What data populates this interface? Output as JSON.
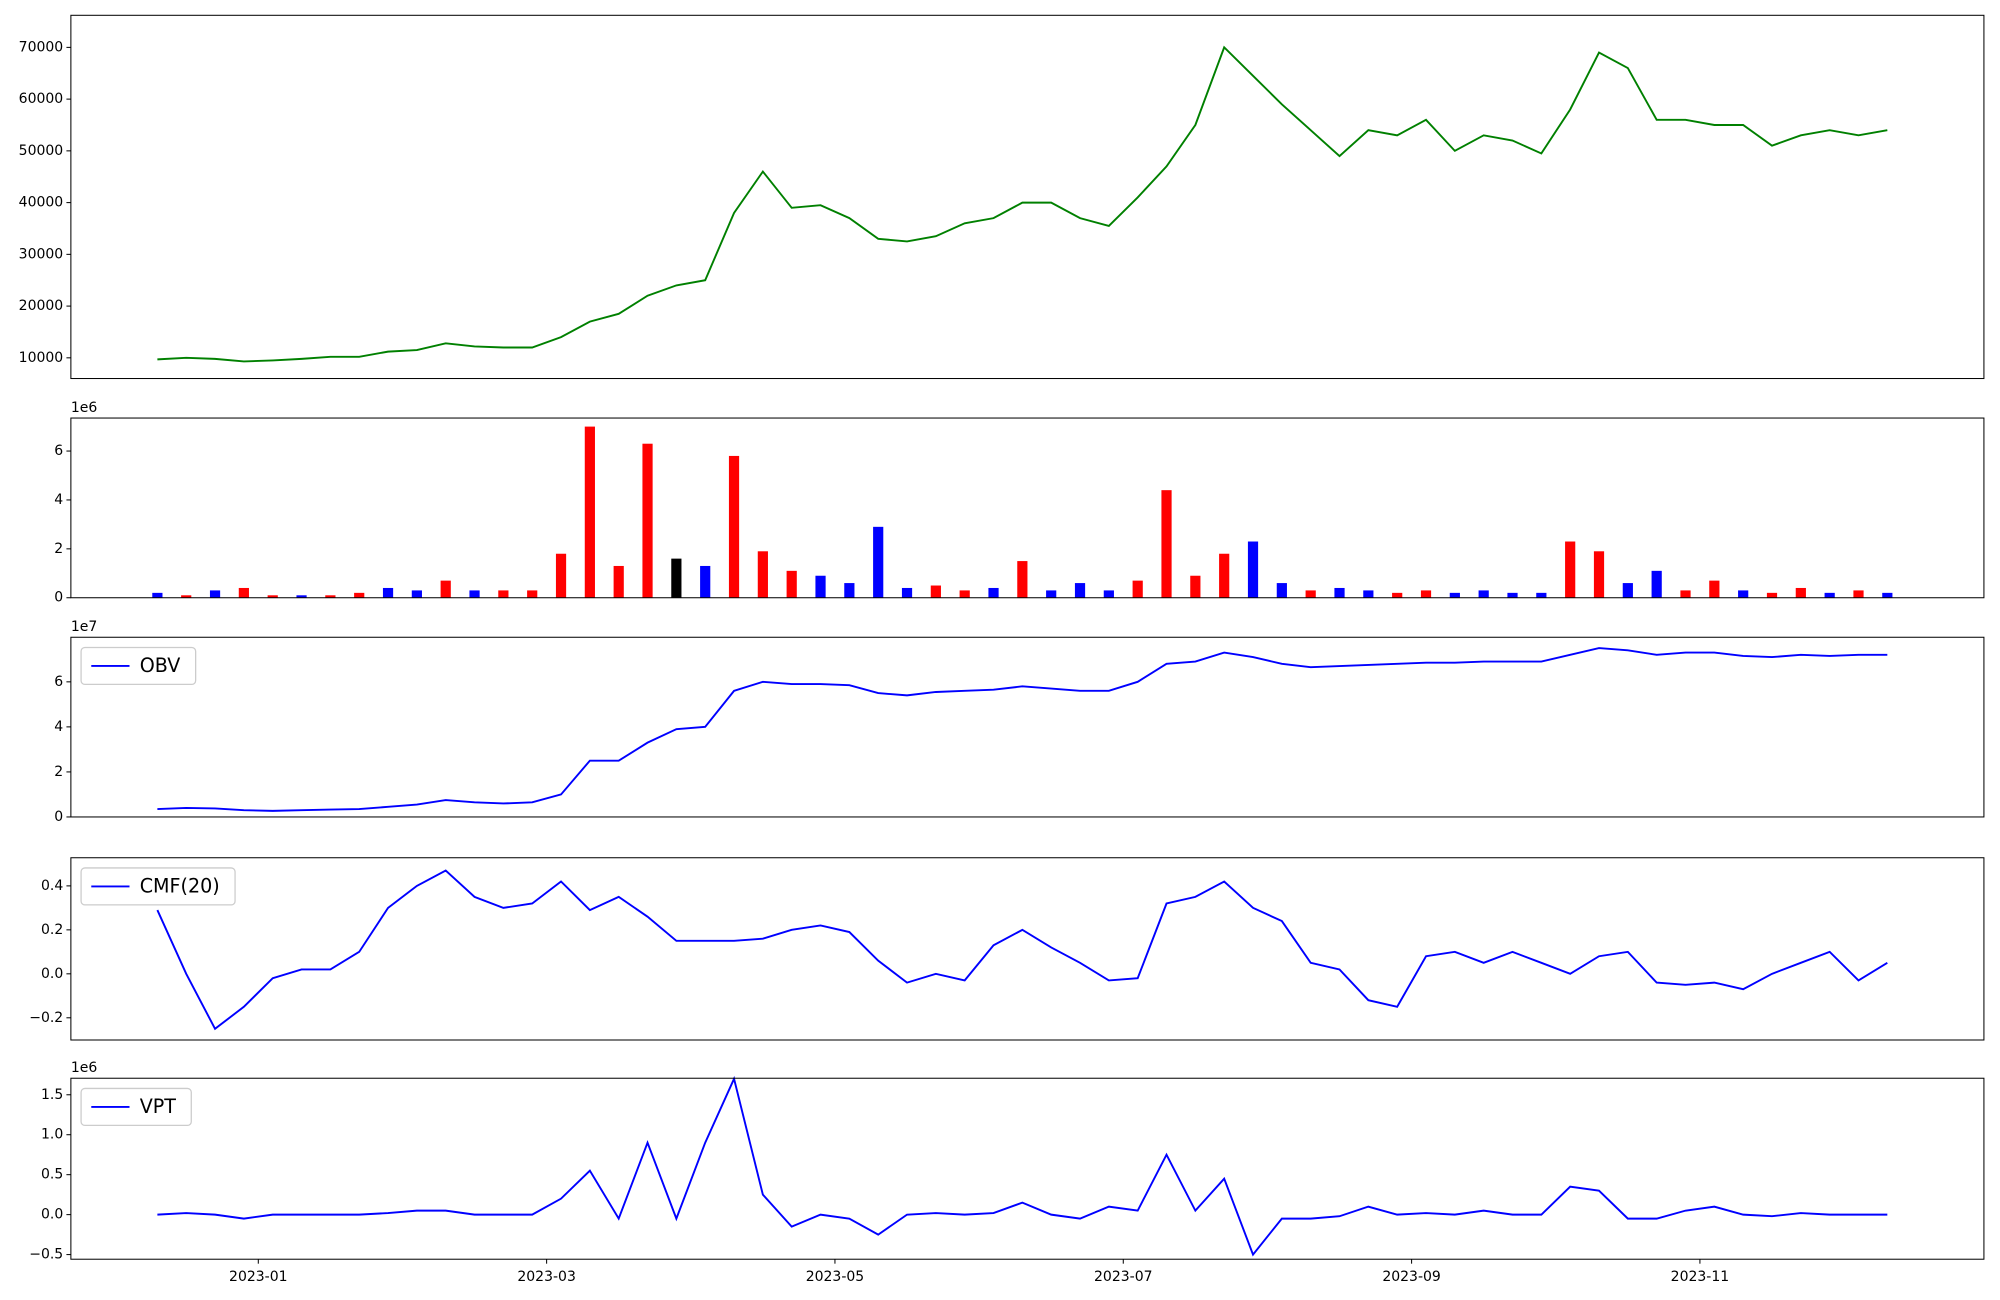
{
  "chart_data": [
    {
      "type": "line",
      "x": [
        0.3,
        0.5,
        0.7,
        0.9,
        1.1,
        1.3,
        1.5,
        1.7,
        1.9,
        2.1,
        2.3,
        2.5,
        2.7,
        2.9,
        3.1,
        3.3,
        3.5,
        3.7,
        3.9,
        4.1,
        4.3,
        4.5,
        4.7,
        4.9,
        5.1,
        5.3,
        5.5,
        5.7,
        5.9,
        6.1,
        6.3,
        6.5,
        6.7,
        6.9,
        7.1,
        7.3,
        7.5,
        7.7,
        7.9,
        8.1,
        8.3,
        8.5,
        8.7,
        8.9,
        9.1,
        9.3,
        9.5,
        9.7,
        9.9,
        10.1,
        10.3,
        10.5,
        10.7,
        10.9,
        11.1,
        11.3,
        11.5,
        11.7,
        11.9,
        12.1,
        12.3
      ],
      "values": [
        9700,
        10000,
        9800,
        9300,
        9500,
        9800,
        10200,
        10200,
        11200,
        11500,
        12800,
        12200,
        12000,
        12000,
        14000,
        17000,
        18500,
        22000,
        24000,
        25000,
        38000,
        46000,
        39000,
        39500,
        37000,
        33000,
        32500,
        33500,
        36000,
        37000,
        40000,
        40000,
        37000,
        35500,
        41000,
        47000,
        55000,
        70000,
        64500,
        59000,
        54000,
        49000,
        54000,
        53000,
        56000,
        50000,
        53000,
        52000,
        49500,
        58000,
        69000,
        66000,
        56000,
        56000,
        55000,
        55000,
        51000,
        53000,
        54000,
        53000,
        54000
      ],
      "color": "#008000",
      "xlim": [
        -0.3,
        12.97
      ],
      "ylim": [
        6000,
        76200
      ],
      "yticks": [
        10000,
        20000,
        30000,
        40000,
        50000,
        60000,
        70000
      ]
    },
    {
      "type": "bar",
      "x": [
        0.3,
        0.5,
        0.7,
        0.9,
        1.1,
        1.3,
        1.5,
        1.7,
        1.9,
        2.1,
        2.3,
        2.5,
        2.7,
        2.9,
        3.1,
        3.3,
        3.5,
        3.7,
        3.9,
        4.1,
        4.3,
        4.5,
        4.7,
        4.9,
        5.1,
        5.3,
        5.5,
        5.7,
        5.9,
        6.1,
        6.3,
        6.5,
        6.7,
        6.9,
        7.1,
        7.3,
        7.5,
        7.7,
        7.9,
        8.1,
        8.3,
        8.5,
        8.7,
        8.9,
        9.1,
        9.3,
        9.5,
        9.7,
        9.9,
        10.1,
        10.3,
        10.5,
        10.7,
        10.9,
        11.1,
        11.3,
        11.5,
        11.7,
        11.9,
        12.1,
        12.3
      ],
      "values": [
        200000,
        100000,
        300000,
        400000,
        100000,
        100000,
        100000,
        200000,
        400000,
        300000,
        700000,
        300000,
        300000,
        300000,
        1800000,
        7000000,
        1300000,
        6300000,
        1600000,
        1300000,
        5800000,
        1900000,
        1100000,
        900000,
        600000,
        2900000,
        400000,
        500000,
        300000,
        400000,
        1500000,
        300000,
        600000,
        300000,
        700000,
        4400000,
        900000,
        1800000,
        2300000,
        600000,
        300000,
        400000,
        300000,
        200000,
        300000,
        200000,
        300000,
        200000,
        200000,
        2300000,
        1900000,
        600000,
        1100000,
        300000,
        700000,
        300000,
        200000,
        400000,
        200000,
        300000,
        200000
      ],
      "colors": [
        "#0000ff",
        "#ff0000",
        "#0000ff",
        "#ff0000",
        "#ff0000",
        "#0000ff",
        "#ff0000",
        "#ff0000",
        "#0000ff",
        "#0000ff",
        "#ff0000",
        "#0000ff",
        "#ff0000",
        "#ff0000",
        "#ff0000",
        "#ff0000",
        "#ff0000",
        "#ff0000",
        "#000000",
        "#0000ff",
        "#ff0000",
        "#ff0000",
        "#ff0000",
        "#0000ff",
        "#0000ff",
        "#0000ff",
        "#0000ff",
        "#ff0000",
        "#ff0000",
        "#0000ff",
        "#ff0000",
        "#0000ff",
        "#0000ff",
        "#0000ff",
        "#ff0000",
        "#ff0000",
        "#ff0000",
        "#ff0000",
        "#0000ff",
        "#0000ff",
        "#ff0000",
        "#0000ff",
        "#0000ff",
        "#ff0000",
        "#ff0000",
        "#0000ff",
        "#0000ff",
        "#0000ff",
        "#0000ff",
        "#ff0000",
        "#ff0000",
        "#0000ff",
        "#0000ff",
        "#ff0000",
        "#ff0000",
        "#0000ff",
        "#ff0000",
        "#ff0000",
        "#0000ff",
        "#ff0000",
        "#0000ff"
      ],
      "xlim": [
        -0.3,
        12.97
      ],
      "ylim": [
        0,
        7350000
      ],
      "offset_label": "1e6",
      "yticks": [
        {
          "value": 0,
          "label": "0"
        },
        {
          "value": 2000000,
          "label": "2"
        },
        {
          "value": 4000000,
          "label": "4"
        },
        {
          "value": 6000000,
          "label": "6"
        }
      ]
    },
    {
      "type": "line",
      "x": [
        0.3,
        0.5,
        0.7,
        0.9,
        1.1,
        1.3,
        1.5,
        1.7,
        1.9,
        2.1,
        2.3,
        2.5,
        2.7,
        2.9,
        3.1,
        3.3,
        3.5,
        3.7,
        3.9,
        4.1,
        4.3,
        4.5,
        4.7,
        4.9,
        5.1,
        5.3,
        5.5,
        5.7,
        5.9,
        6.1,
        6.3,
        6.5,
        6.7,
        6.9,
        7.1,
        7.3,
        7.5,
        7.7,
        7.9,
        8.1,
        8.3,
        8.5,
        8.7,
        8.9,
        9.1,
        9.3,
        9.5,
        9.7,
        9.9,
        10.1,
        10.3,
        10.5,
        10.7,
        10.9,
        11.1,
        11.3,
        11.5,
        11.7,
        11.9,
        12.1,
        12.3
      ],
      "series": [
        {
          "name": "OBV",
          "color": "#0000ff",
          "values": [
            3500000,
            4000000,
            3800000,
            3000000,
            2700000,
            3000000,
            3300000,
            3500000,
            4500000,
            5500000,
            7500000,
            6500000,
            6000000,
            6500000,
            10000000,
            25000000,
            25000000,
            33000000,
            39000000,
            40000000,
            56000000,
            60000000,
            59000000,
            59000000,
            58500000,
            55000000,
            54000000,
            55500000,
            56000000,
            56500000,
            58000000,
            57000000,
            56000000,
            56000000,
            60000000,
            68000000,
            69000000,
            73000000,
            71000000,
            68000000,
            66500000,
            67000000,
            67500000,
            68000000,
            68500000,
            68500000,
            69000000,
            69000000,
            69000000,
            72000000,
            75000000,
            74000000,
            72000000,
            73000000,
            73000000,
            71500000,
            71000000,
            72000000,
            71500000,
            72000000,
            72000000
          ]
        }
      ],
      "legend": "upper left",
      "xlim": [
        -0.3,
        12.97
      ],
      "ylim": [
        0,
        79800000
      ],
      "offset_label": "1e7",
      "yticks": [
        {
          "value": 0,
          "label": "0"
        },
        {
          "value": 20000000,
          "label": "2"
        },
        {
          "value": 40000000,
          "label": "4"
        },
        {
          "value": 60000000,
          "label": "6"
        }
      ]
    },
    {
      "type": "line",
      "x": [
        0.3,
        0.5,
        0.7,
        0.9,
        1.1,
        1.3,
        1.5,
        1.7,
        1.9,
        2.1,
        2.3,
        2.5,
        2.7,
        2.9,
        3.1,
        3.3,
        3.5,
        3.7,
        3.9,
        4.1,
        4.3,
        4.5,
        4.7,
        4.9,
        5.1,
        5.3,
        5.5,
        5.7,
        5.9,
        6.1,
        6.3,
        6.5,
        6.7,
        6.9,
        7.1,
        7.3,
        7.5,
        7.7,
        7.9,
        8.1,
        8.3,
        8.5,
        8.7,
        8.9,
        9.1,
        9.3,
        9.5,
        9.7,
        9.9,
        10.1,
        10.3,
        10.5,
        10.7,
        10.9,
        11.1,
        11.3,
        11.5,
        11.7,
        11.9,
        12.1,
        12.3
      ],
      "series": [
        {
          "name": "CMF(20)",
          "color": "#0000ff",
          "values": [
            0.29,
            0.0,
            -0.25,
            -0.15,
            -0.02,
            0.02,
            0.02,
            0.1,
            0.3,
            0.4,
            0.47,
            0.35,
            0.3,
            0.32,
            0.42,
            0.29,
            0.35,
            0.26,
            0.15,
            0.15,
            0.15,
            0.16,
            0.2,
            0.22,
            0.19,
            0.06,
            -0.04,
            0.0,
            -0.03,
            0.13,
            0.2,
            0.12,
            0.05,
            -0.03,
            -0.02,
            0.32,
            0.35,
            0.42,
            0.3,
            0.24,
            0.05,
            0.02,
            -0.12,
            -0.15,
            0.08,
            0.1,
            0.05,
            0.1,
            0.05,
            0.0,
            0.08,
            0.1,
            -0.04,
            -0.05,
            -0.04,
            -0.07,
            0.0,
            0.05,
            0.1,
            -0.03,
            0.05
          ]
        }
      ],
      "legend": "upper left",
      "xlim": [
        -0.3,
        12.97
      ],
      "ylim": [
        -0.301,
        0.528
      ],
      "yticks": [
        {
          "value": -0.2,
          "label": "−0.2"
        },
        {
          "value": 0,
          "label": "0.0"
        },
        0.2,
        0.4
      ]
    },
    {
      "type": "line",
      "x": [
        0.3,
        0.5,
        0.7,
        0.9,
        1.1,
        1.3,
        1.5,
        1.7,
        1.9,
        2.1,
        2.3,
        2.5,
        2.7,
        2.9,
        3.1,
        3.3,
        3.5,
        3.7,
        3.9,
        4.1,
        4.3,
        4.5,
        4.7,
        4.9,
        5.1,
        5.3,
        5.5,
        5.7,
        5.9,
        6.1,
        6.3,
        6.5,
        6.7,
        6.9,
        7.1,
        7.3,
        7.5,
        7.7,
        7.9,
        8.1,
        8.3,
        8.5,
        8.7,
        8.9,
        9.1,
        9.3,
        9.5,
        9.7,
        9.9,
        10.1,
        10.3,
        10.5,
        10.7,
        10.9,
        11.1,
        11.3,
        11.5,
        11.7,
        11.9,
        12.1,
        12.3
      ],
      "series": [
        {
          "name": "VPT",
          "color": "#0000ff",
          "values": [
            0,
            20000,
            0,
            -50000,
            0,
            0,
            0,
            0,
            20000,
            50000,
            50000,
            0,
            0,
            0,
            200000,
            550000,
            -50000,
            900000,
            -50000,
            900000,
            1700000,
            250000,
            -150000,
            0,
            -50000,
            -250000,
            0,
            20000,
            0,
            20000,
            150000,
            0,
            -50000,
            100000,
            50000,
            750000,
            50000,
            450000,
            -500000,
            -50000,
            -50000,
            -20000,
            100000,
            0,
            20000,
            0,
            50000,
            0,
            0,
            350000,
            300000,
            -50000,
            -50000,
            50000,
            100000,
            0,
            -20000,
            20000,
            0,
            0,
            0
          ]
        }
      ],
      "legend": "upper left",
      "xlim": [
        -0.3,
        12.97
      ],
      "ylim": [
        -558000,
        1707000
      ],
      "offset_label": "1e6",
      "yticks": [
        {
          "value": -500000,
          "label": "−0.5"
        },
        {
          "value": 0,
          "label": "0.0"
        },
        {
          "value": 500000,
          "label": "0.5"
        },
        {
          "value": 1000000,
          "label": "1.0"
        },
        {
          "value": 1500000,
          "label": "1.5"
        }
      ],
      "xticks": [
        {
          "value": 1,
          "label": "2023-01"
        },
        {
          "value": 3,
          "label": "2023-03"
        },
        {
          "value": 5,
          "label": "2023-05"
        },
        {
          "value": 7,
          "label": "2023-07"
        },
        {
          "value": 9,
          "label": "2023-09"
        },
        {
          "value": 11,
          "label": "2023-11"
        }
      ]
    }
  ]
}
